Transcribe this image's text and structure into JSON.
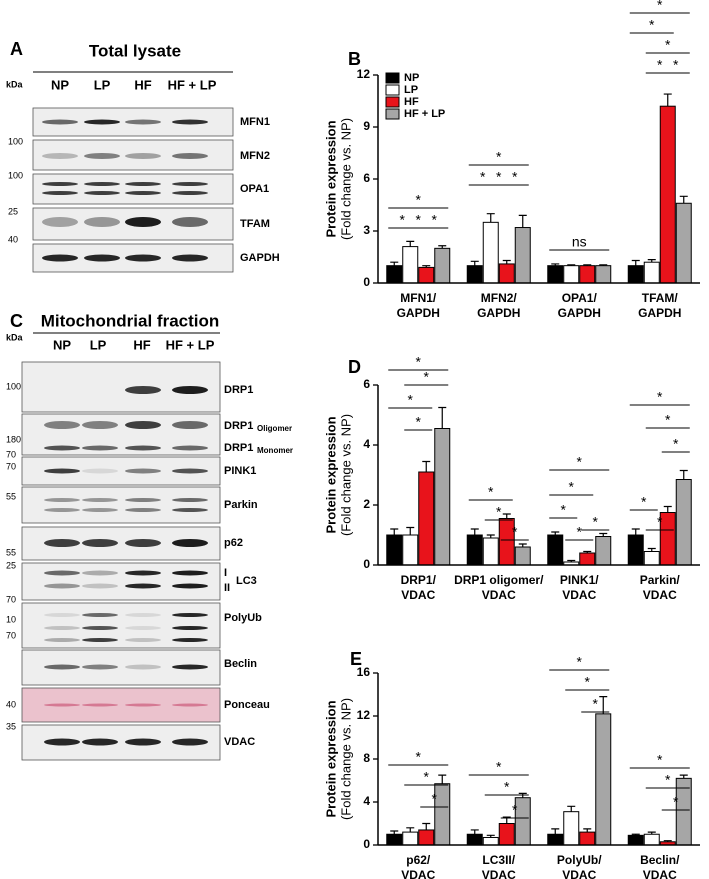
{
  "blot_a": {
    "panel": "A",
    "title": "Total lysate",
    "unit": "kDa",
    "lanes": [
      "NP",
      "LP",
      "HF",
      "HF + LP"
    ],
    "rows": [
      "MFN1",
      "MFN2",
      "OPA1",
      "TFAM",
      "GAPDH"
    ],
    "markers": [
      100,
      100,
      25,
      40
    ]
  },
  "blot_c": {
    "panel": "C",
    "title": "Mitochondrial fraction",
    "unit": "kDa",
    "lanes": [
      "NP",
      "LP",
      "HF",
      "HF + LP"
    ],
    "rows": {
      "drp1": "DRP1",
      "oligomer": "DRP1",
      "oligomer_sub": "Oligomer",
      "monomer": "DRP1",
      "monomer_sub": "Monomer",
      "pink1": "PINK1",
      "parkin": "Parkin",
      "p62": "p62",
      "lc3_i": "I",
      "lc3_ii": "II",
      "lc3": "LC3",
      "polyub": "PolyUb",
      "beclin": "Beclin",
      "ponceau": "Ponceau",
      "vdac": "VDAC"
    },
    "markers": [
      100,
      180,
      70,
      70,
      55,
      55,
      25,
      70,
      10,
      70,
      40,
      35
    ]
  },
  "chart_data": [
    {
      "type": "bar",
      "panel": "B",
      "ylabel": "Protein expression",
      "ylabel_note": "(Fold change vs. NP)",
      "categories": [
        [
          "MFN1/",
          "GAPDH"
        ],
        [
          "MFN2/",
          "GAPDH"
        ],
        [
          "OPA1/",
          "GAPDH"
        ],
        [
          "TFAM/",
          "GAPDH"
        ]
      ],
      "series": [
        {
          "name": "NP",
          "color": "#000000",
          "values": [
            1.0,
            1.0,
            1.0,
            1.0
          ],
          "errors": [
            0.2,
            0.25,
            0.1,
            0.3
          ]
        },
        {
          "name": "LP",
          "color": "#ffffff",
          "values": [
            2.1,
            3.5,
            1.0,
            1.2
          ],
          "errors": [
            0.3,
            0.5,
            0.05,
            0.15
          ]
        },
        {
          "name": "HF",
          "color": "#e8131b",
          "values": [
            0.9,
            1.1,
            1.0,
            10.2
          ],
          "errors": [
            0.1,
            0.2,
            0.05,
            0.7
          ]
        },
        {
          "name": "HF + LP",
          "color": "#a6a6a6",
          "values": [
            2.0,
            3.2,
            1.0,
            4.6
          ],
          "errors": [
            0.15,
            0.7,
            0.05,
            0.4
          ]
        }
      ],
      "ylim": [
        0,
        12
      ],
      "yticks": [
        0,
        3,
        6,
        9,
        12
      ],
      "legend": "upper left",
      "significance": [
        "*",
        "*",
        "*",
        "*",
        "*",
        "*",
        "*",
        "*",
        "ns",
        "*",
        "*",
        "*",
        "*",
        "*"
      ]
    },
    {
      "type": "bar",
      "panel": "D",
      "ylabel": "Protein expression",
      "ylabel_note": "(Fold change vs. NP)",
      "categories": [
        [
          "DRP1/",
          "VDAC"
        ],
        [
          "DRP1 oligomer/",
          "VDAC"
        ],
        [
          "PINK1/",
          "VDAC"
        ],
        [
          "Parkin/",
          "VDAC"
        ]
      ],
      "series": [
        {
          "name": "NP",
          "color": "#000000",
          "values": [
            1.0,
            1.0,
            1.0,
            1.0
          ],
          "errors": [
            0.2,
            0.2,
            0.1,
            0.2
          ]
        },
        {
          "name": "LP",
          "color": "#ffffff",
          "values": [
            1.0,
            0.9,
            0.1,
            0.45
          ],
          "errors": [
            0.25,
            0.1,
            0.05,
            0.1
          ]
        },
        {
          "name": "HF",
          "color": "#e8131b",
          "values": [
            3.1,
            1.55,
            0.4,
            1.75
          ],
          "errors": [
            0.35,
            0.15,
            0.05,
            0.2
          ]
        },
        {
          "name": "HF + LP",
          "color": "#a6a6a6",
          "values": [
            4.55,
            0.6,
            0.95,
            2.85
          ],
          "errors": [
            0.7,
            0.1,
            0.1,
            0.3
          ]
        }
      ],
      "ylim": [
        0,
        6
      ],
      "yticks": [
        0,
        2,
        4,
        6
      ],
      "legend": "none",
      "significance": [
        "*",
        "*",
        "*",
        "*",
        "*",
        "*",
        "*",
        "*",
        "*",
        "*",
        "*",
        "*",
        "*",
        "*",
        "*",
        "*",
        "*"
      ]
    },
    {
      "type": "bar",
      "panel": "E",
      "ylabel": "Protein expression",
      "ylabel_note": "(Fold change vs. NP)",
      "categories": [
        [
          "p62/",
          "VDAC"
        ],
        [
          "LC3II/",
          "VDAC"
        ],
        [
          "PolyUb/",
          "VDAC"
        ],
        [
          "Beclin/",
          "VDAC"
        ]
      ],
      "series": [
        {
          "name": "NP",
          "color": "#000000",
          "values": [
            1.0,
            1.0,
            1.0,
            0.9
          ],
          "errors": [
            0.3,
            0.4,
            0.5,
            0.1
          ]
        },
        {
          "name": "LP",
          "color": "#ffffff",
          "values": [
            1.2,
            0.7,
            3.1,
            1.0
          ],
          "errors": [
            0.4,
            0.2,
            0.5,
            0.2
          ]
        },
        {
          "name": "HF",
          "color": "#e8131b",
          "values": [
            1.4,
            2.0,
            1.2,
            0.3
          ],
          "errors": [
            0.6,
            0.6,
            0.3,
            0.1
          ]
        },
        {
          "name": "HF + LP",
          "color": "#a6a6a6",
          "values": [
            5.7,
            4.4,
            12.2,
            6.2
          ],
          "errors": [
            0.8,
            0.4,
            1.6,
            0.3
          ]
        }
      ],
      "ylim": [
        0,
        16
      ],
      "yticks": [
        0,
        4,
        8,
        12,
        16
      ],
      "legend": "none",
      "significance": [
        "*",
        "*",
        "*",
        "*",
        "*",
        "*",
        "*",
        "*",
        "*",
        "*",
        "*",
        "*"
      ]
    }
  ]
}
